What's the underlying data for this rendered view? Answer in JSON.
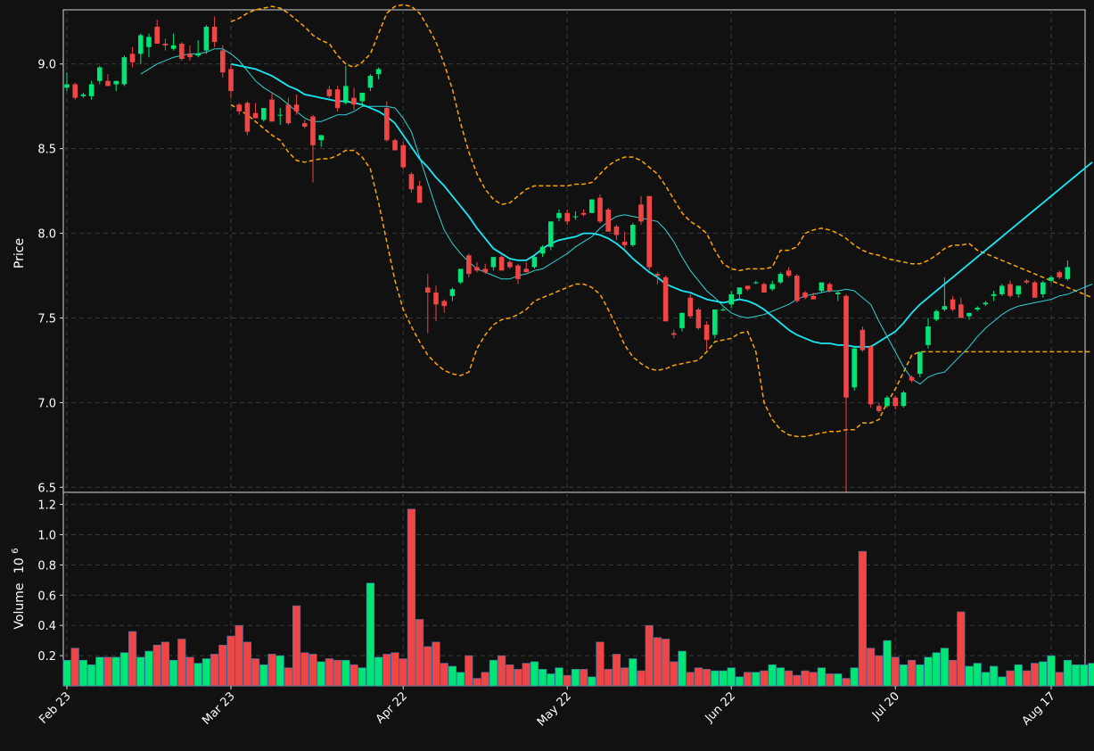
{
  "chart_data": {
    "type": "candlestick",
    "colors": {
      "background": "#111111",
      "grid": "#3a3a3a",
      "up": "#00e676",
      "down": "#ef4545",
      "ma_fast": "#2fd3d3",
      "ma_slow": "#18e8f5",
      "bands": "#ffa500",
      "text": "#ffffff"
    },
    "price_panel": {
      "ylabel": "Price",
      "ylim": [
        6.47,
        9.32
      ],
      "yticks": [
        6.5,
        7.0,
        7.5,
        8.0,
        8.5,
        9.0
      ],
      "ytick_labels": [
        "6.5",
        "7.0",
        "7.5",
        "8.0",
        "8.5",
        "9.0"
      ]
    },
    "volume_panel": {
      "ylabel": "Volume",
      "exponent_label": "10",
      "exponent": "6",
      "ylim": [
        0.0,
        1.28
      ],
      "yticks": [
        0.2,
        0.4,
        0.6,
        0.8,
        1.0,
        1.2
      ],
      "ytick_labels": [
        "0.2",
        "0.4",
        "0.6",
        "0.8",
        "1.0",
        "1.2"
      ]
    },
    "x": {
      "count": 126,
      "tick_index": [
        0,
        20,
        41,
        61,
        81,
        101,
        120
      ],
      "tick_labels": [
        "Feb 23",
        "Mar 23",
        "Apr 22",
        "May 22",
        "Jun 22",
        "Jul 20",
        "Aug 17"
      ]
    },
    "ohlc": [
      [
        8.86,
        8.95,
        8.84,
        8.88
      ],
      [
        8.88,
        8.89,
        8.79,
        8.8
      ],
      [
        8.81,
        8.83,
        8.8,
        8.82
      ],
      [
        8.81,
        8.9,
        8.79,
        8.88
      ],
      [
        8.9,
        8.99,
        8.88,
        8.98
      ],
      [
        8.9,
        8.94,
        8.87,
        8.87
      ],
      [
        8.88,
        8.9,
        8.84,
        8.9
      ],
      [
        8.88,
        9.05,
        8.87,
        9.04
      ],
      [
        9.06,
        9.1,
        8.98,
        9.01
      ],
      [
        9.06,
        9.18,
        9.0,
        9.17
      ],
      [
        9.1,
        9.18,
        9.04,
        9.16
      ],
      [
        9.22,
        9.26,
        9.12,
        9.12
      ],
      [
        9.12,
        9.15,
        9.08,
        9.11
      ],
      [
        9.09,
        9.18,
        9.08,
        9.11
      ],
      [
        9.12,
        9.13,
        9.02,
        9.03
      ],
      [
        9.06,
        9.11,
        9.02,
        9.04
      ],
      [
        9.05,
        9.14,
        9.04,
        9.06
      ],
      [
        9.08,
        9.23,
        9.06,
        9.22
      ],
      [
        9.22,
        9.28,
        9.1,
        9.13
      ],
      [
        9.08,
        9.11,
        8.92,
        8.95
      ],
      [
        8.97,
        9.0,
        8.8,
        8.84
      ],
      [
        8.76,
        8.77,
        8.7,
        8.72
      ],
      [
        8.77,
        8.78,
        8.58,
        8.6
      ],
      [
        8.71,
        8.77,
        8.68,
        8.68
      ],
      [
        8.67,
        8.74,
        8.66,
        8.74
      ],
      [
        8.79,
        8.83,
        8.66,
        8.66
      ],
      [
        8.7,
        8.74,
        8.64,
        8.7
      ],
      [
        8.76,
        8.8,
        8.64,
        8.65
      ],
      [
        8.76,
        8.82,
        8.7,
        8.72
      ],
      [
        8.65,
        8.67,
        8.62,
        8.63
      ],
      [
        8.69,
        8.7,
        8.3,
        8.52
      ],
      [
        8.55,
        8.58,
        8.51,
        8.58
      ],
      [
        8.85,
        8.87,
        8.8,
        8.81
      ],
      [
        8.85,
        8.87,
        8.72,
        8.74
      ],
      [
        8.77,
        8.99,
        8.76,
        8.87
      ],
      [
        8.8,
        8.86,
        8.73,
        8.76
      ],
      [
        8.78,
        8.83,
        8.75,
        8.83
      ],
      [
        8.86,
        8.94,
        8.84,
        8.93
      ],
      [
        8.94,
        8.98,
        8.91,
        8.97
      ],
      [
        8.74,
        8.78,
        8.54,
        8.55
      ],
      [
        8.55,
        8.56,
        8.49,
        8.49
      ],
      [
        8.52,
        8.54,
        8.38,
        8.39
      ],
      [
        8.35,
        8.36,
        8.24,
        8.26
      ],
      [
        8.28,
        8.31,
        8.18,
        8.18
      ],
      [
        7.68,
        7.76,
        7.41,
        7.65
      ],
      [
        7.65,
        7.69,
        7.48,
        7.58
      ],
      [
        7.6,
        7.61,
        7.53,
        7.57
      ],
      [
        7.63,
        7.68,
        7.6,
        7.67
      ],
      [
        7.71,
        7.79,
        7.7,
        7.79
      ],
      [
        7.87,
        7.88,
        7.74,
        7.76
      ],
      [
        7.8,
        7.83,
        7.77,
        7.78
      ],
      [
        7.79,
        7.82,
        7.76,
        7.77
      ],
      [
        7.8,
        7.86,
        7.78,
        7.86
      ],
      [
        7.86,
        7.87,
        7.78,
        7.78
      ],
      [
        7.83,
        7.84,
        7.79,
        7.8
      ],
      [
        7.81,
        7.82,
        7.7,
        7.73
      ],
      [
        7.79,
        7.83,
        7.77,
        7.77
      ],
      [
        7.8,
        7.87,
        7.79,
        7.86
      ],
      [
        7.88,
        7.93,
        7.86,
        7.92
      ],
      [
        7.92,
        8.07,
        7.9,
        8.07
      ],
      [
        8.09,
        8.14,
        8.07,
        8.12
      ],
      [
        8.12,
        8.14,
        8.05,
        8.07
      ],
      [
        8.1,
        8.13,
        8.08,
        8.1
      ],
      [
        8.12,
        8.14,
        8.1,
        8.11
      ],
      [
        8.12,
        8.2,
        8.12,
        8.2
      ],
      [
        8.21,
        8.23,
        8.06,
        8.07
      ],
      [
        8.14,
        8.15,
        8.01,
        8.01
      ],
      [
        8.04,
        8.05,
        7.96,
        7.99
      ],
      [
        7.95,
        8.01,
        7.91,
        7.93
      ],
      [
        7.93,
        8.06,
        7.92,
        8.05
      ],
      [
        8.17,
        8.22,
        8.05,
        8.07
      ],
      [
        8.22,
        8.22,
        7.78,
        7.8
      ],
      [
        7.76,
        7.77,
        7.7,
        7.75
      ],
      [
        7.74,
        7.75,
        7.48,
        7.48
      ],
      [
        7.41,
        7.43,
        7.38,
        7.4
      ],
      [
        7.44,
        7.53,
        7.42,
        7.53
      ],
      [
        7.62,
        7.64,
        7.5,
        7.51
      ],
      [
        7.55,
        7.56,
        7.43,
        7.44
      ],
      [
        7.46,
        7.48,
        7.31,
        7.37
      ],
      [
        7.4,
        7.55,
        7.38,
        7.55
      ],
      [
        7.55,
        7.56,
        7.54,
        7.55
      ],
      [
        7.58,
        7.66,
        7.56,
        7.64
      ],
      [
        7.64,
        7.68,
        7.61,
        7.68
      ],
      [
        7.69,
        7.69,
        7.66,
        7.67
      ],
      [
        7.71,
        7.72,
        7.7,
        7.71
      ],
      [
        7.7,
        7.71,
        7.65,
        7.65
      ],
      [
        7.67,
        7.72,
        7.66,
        7.7
      ],
      [
        7.71,
        7.77,
        7.7,
        7.76
      ],
      [
        7.78,
        7.8,
        7.74,
        7.75
      ],
      [
        7.75,
        7.76,
        7.59,
        7.6
      ],
      [
        7.65,
        7.66,
        7.61,
        7.62
      ],
      [
        7.63,
        7.65,
        7.61,
        7.61
      ],
      [
        7.66,
        7.71,
        7.65,
        7.71
      ],
      [
        7.7,
        7.71,
        7.65,
        7.66
      ],
      [
        7.64,
        7.66,
        7.6,
        7.65
      ],
      [
        7.63,
        7.64,
        6.44,
        7.03
      ],
      [
        7.09,
        7.33,
        7.07,
        7.32
      ],
      [
        7.43,
        7.45,
        7.3,
        7.31
      ],
      [
        7.33,
        7.34,
        6.97,
        6.99
      ],
      [
        6.98,
        7.0,
        6.94,
        6.95
      ],
      [
        6.98,
        7.04,
        6.97,
        7.03
      ],
      [
        7.03,
        7.04,
        6.96,
        6.98
      ],
      [
        6.98,
        7.07,
        6.97,
        7.06
      ],
      [
        7.15,
        7.16,
        7.12,
        7.13
      ],
      [
        7.17,
        7.3,
        7.15,
        7.3
      ],
      [
        7.34,
        7.5,
        7.32,
        7.45
      ],
      [
        7.49,
        7.55,
        7.48,
        7.54
      ],
      [
        7.55,
        7.74,
        7.54,
        7.57
      ],
      [
        7.61,
        7.63,
        7.54,
        7.55
      ],
      [
        7.58,
        7.62,
        7.5,
        7.5
      ],
      [
        7.51,
        7.53,
        7.49,
        7.53
      ],
      [
        7.55,
        7.57,
        7.54,
        7.56
      ],
      [
        7.58,
        7.6,
        7.57,
        7.59
      ],
      [
        7.63,
        7.66,
        7.6,
        7.64
      ],
      [
        7.64,
        7.7,
        7.63,
        7.69
      ],
      [
        7.7,
        7.72,
        7.62,
        7.63
      ],
      [
        7.64,
        7.69,
        7.62,
        7.69
      ],
      [
        7.72,
        7.73,
        7.7,
        7.71
      ],
      [
        7.71,
        7.72,
        7.62,
        7.62
      ],
      [
        7.64,
        7.72,
        7.62,
        7.71
      ],
      [
        7.72,
        7.75,
        7.71,
        7.74
      ],
      [
        7.77,
        7.78,
        7.73,
        7.74
      ],
      [
        7.73,
        7.84,
        7.72,
        7.8
      ]
    ],
    "volume": [
      0.17,
      0.25,
      0.17,
      0.14,
      0.19,
      0.19,
      0.19,
      0.22,
      0.36,
      0.19,
      0.23,
      0.27,
      0.29,
      0.17,
      0.31,
      0.19,
      0.15,
      0.18,
      0.21,
      0.27,
      0.33,
      0.4,
      0.29,
      0.18,
      0.14,
      0.21,
      0.2,
      0.12,
      0.53,
      0.22,
      0.21,
      0.16,
      0.18,
      0.17,
      0.17,
      0.14,
      0.12,
      0.68,
      0.19,
      0.21,
      0.22,
      0.18,
      1.17,
      0.44,
      0.26,
      0.29,
      0.15,
      0.13,
      0.09,
      0.2,
      0.05,
      0.09,
      0.17,
      0.2,
      0.14,
      0.11,
      0.15,
      0.16,
      0.11,
      0.08,
      0.12,
      0.07,
      0.11,
      0.11,
      0.06,
      0.29,
      0.11,
      0.21,
      0.12,
      0.18,
      0.1,
      0.4,
      0.32,
      0.31,
      0.16,
      0.23,
      0.09,
      0.12,
      0.11,
      0.1,
      0.1,
      0.12,
      0.06,
      0.09,
      0.09,
      0.1,
      0.14,
      0.12,
      0.1,
      0.07,
      0.1,
      0.09,
      0.12,
      0.08,
      0.08,
      0.05,
      0.12,
      0.89,
      0.25,
      0.2,
      0.3,
      0.19,
      0.14,
      0.17,
      0.14,
      0.19,
      0.22,
      0.25,
      0.17,
      0.49,
      0.13,
      0.15,
      0.09,
      0.13,
      0.06,
      0.1,
      0.14,
      0.1,
      0.15,
      0.16,
      0.2,
      0.09,
      0.17,
      0.14,
      0.14,
      0.15
    ],
    "ma_fast": [
      null,
      null,
      null,
      null,
      null,
      null,
      null,
      null,
      null,
      8.94,
      8.97,
      9.0,
      9.02,
      9.04,
      9.05,
      9.06,
      9.06,
      9.07,
      9.09,
      9.09,
      9.06,
      9.02,
      8.96,
      8.9,
      8.86,
      8.83,
      8.8,
      8.76,
      8.72,
      8.68,
      8.66,
      8.66,
      8.68,
      8.7,
      8.7,
      8.72,
      8.75,
      8.75,
      8.75,
      8.75,
      8.74,
      8.68,
      8.6,
      8.45,
      8.3,
      8.15,
      8.02,
      7.94,
      7.88,
      7.83,
      7.79,
      7.77,
      7.75,
      7.73,
      7.73,
      7.75,
      7.76,
      7.78,
      7.79,
      7.82,
      7.85,
      7.88,
      7.92,
      7.95,
      7.98,
      8.03,
      8.07,
      8.1,
      8.11,
      8.1,
      8.09,
      8.08,
      8.07,
      8.02,
      7.95,
      7.86,
      7.78,
      7.72,
      7.66,
      7.62,
      7.57,
      7.53,
      7.51,
      7.5,
      7.51,
      7.52,
      7.54,
      7.56,
      7.58,
      7.61,
      7.63,
      7.64,
      7.65,
      7.66,
      7.66,
      7.67,
      7.66,
      7.62,
      7.58,
      7.48,
      7.39,
      7.3,
      7.21,
      7.14,
      7.11,
      7.15,
      7.17,
      7.18,
      7.23,
      7.28,
      7.33,
      7.39,
      7.44,
      7.48,
      7.52,
      7.55,
      7.57,
      7.58,
      7.59,
      7.6,
      7.61,
      7.63,
      7.64,
      7.66,
      7.68,
      7.7
    ],
    "ma_slow": [
      null,
      null,
      null,
      null,
      null,
      null,
      null,
      null,
      null,
      null,
      null,
      null,
      null,
      null,
      null,
      null,
      null,
      null,
      null,
      null,
      9.0,
      8.99,
      8.98,
      8.97,
      8.95,
      8.93,
      8.9,
      8.87,
      8.85,
      8.82,
      8.81,
      8.8,
      8.79,
      8.78,
      8.78,
      8.77,
      8.76,
      8.74,
      8.72,
      8.69,
      8.65,
      8.58,
      8.51,
      8.44,
      8.39,
      8.33,
      8.28,
      8.22,
      8.16,
      8.1,
      8.03,
      7.97,
      7.91,
      7.88,
      7.85,
      7.84,
      7.84,
      7.87,
      7.91,
      7.94,
      7.96,
      7.97,
      7.98,
      8.0,
      8.0,
      7.99,
      7.97,
      7.94,
      7.9,
      7.85,
      7.81,
      7.77,
      7.74,
      7.7,
      7.68,
      7.66,
      7.65,
      7.63,
      7.61,
      7.6,
      7.59,
      7.6,
      7.61,
      7.6,
      7.58,
      7.55,
      7.51,
      7.47,
      7.43,
      7.4,
      7.38,
      7.36,
      7.35,
      7.35,
      7.34,
      7.34,
      7.33,
      7.33,
      7.33,
      7.36,
      7.39,
      7.42,
      7.47,
      7.53,
      7.58,
      7.62,
      7.66,
      7.7,
      7.74,
      7.78,
      7.82,
      7.86,
      7.9,
      7.94,
      7.98,
      8.02,
      8.06,
      8.1,
      8.14,
      8.18,
      8.22,
      8.26,
      8.3,
      8.34,
      8.38,
      8.42
    ],
    "band_upper": [
      null,
      null,
      null,
      null,
      null,
      null,
      null,
      null,
      null,
      null,
      null,
      null,
      null,
      null,
      null,
      null,
      null,
      null,
      null,
      null,
      9.25,
      9.27,
      9.3,
      9.32,
      9.33,
      9.34,
      9.33,
      9.3,
      9.26,
      9.22,
      9.17,
      9.14,
      9.12,
      9.05,
      9.0,
      8.98,
      9.01,
      9.06,
      9.18,
      9.3,
      9.34,
      9.35,
      9.34,
      9.3,
      9.22,
      9.13,
      9.0,
      8.85,
      8.65,
      8.48,
      8.35,
      8.26,
      8.2,
      8.17,
      8.18,
      8.22,
      8.26,
      8.28,
      8.28,
      8.28,
      8.28,
      8.28,
      8.29,
      8.29,
      8.3,
      8.35,
      8.4,
      8.43,
      8.45,
      8.45,
      8.43,
      8.39,
      8.35,
      8.28,
      8.2,
      8.12,
      8.07,
      8.04,
      8.0,
      7.9,
      7.82,
      7.79,
      7.78,
      7.79,
      7.79,
      7.79,
      7.8,
      7.9,
      7.9,
      7.92,
      8.0,
      8.02,
      8.03,
      8.02,
      8.0,
      7.97,
      7.93,
      7.9,
      7.88,
      7.87,
      7.85,
      7.84,
      7.83,
      7.82,
      7.82,
      7.84,
      7.87,
      7.91,
      7.93,
      7.93,
      7.94,
      7.9,
      7.88,
      7.86,
      7.84,
      7.82,
      7.8,
      7.78,
      7.76,
      7.74,
      7.72,
      7.7,
      7.68,
      7.66,
      7.64,
      7.62
    ],
    "band_lower": [
      null,
      null,
      null,
      null,
      null,
      null,
      null,
      null,
      null,
      null,
      null,
      null,
      null,
      null,
      null,
      null,
      null,
      null,
      null,
      null,
      8.76,
      8.73,
      8.7,
      8.66,
      8.62,
      8.58,
      8.55,
      8.48,
      8.43,
      8.42,
      8.43,
      8.44,
      8.44,
      8.46,
      8.49,
      8.49,
      8.45,
      8.38,
      8.18,
      7.95,
      7.72,
      7.55,
      7.45,
      7.36,
      7.28,
      7.23,
      7.19,
      7.17,
      7.16,
      7.18,
      7.32,
      7.4,
      7.46,
      7.49,
      7.5,
      7.52,
      7.55,
      7.6,
      7.62,
      7.64,
      7.66,
      7.68,
      7.7,
      7.7,
      7.68,
      7.64,
      7.55,
      7.45,
      7.34,
      7.27,
      7.23,
      7.2,
      7.19,
      7.2,
      7.22,
      7.23,
      7.24,
      7.25,
      7.3,
      7.36,
      7.37,
      7.38,
      7.41,
      7.42,
      7.3,
      7.0,
      6.9,
      6.84,
      6.81,
      6.8,
      6.8,
      6.81,
      6.82,
      6.83,
      6.83,
      6.84,
      6.84,
      6.88,
      6.88,
      6.9,
      7.0,
      7.08,
      7.18,
      7.28,
      7.3,
      7.3,
      7.3,
      7.3,
      7.3,
      7.3,
      7.3,
      7.3,
      7.3,
      7.3,
      7.3,
      7.3,
      7.3,
      7.3,
      7.3,
      7.3,
      7.3,
      7.3,
      7.3,
      7.3,
      7.3,
      7.3
    ]
  }
}
